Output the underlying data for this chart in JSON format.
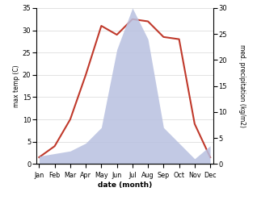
{
  "months": [
    "Jan",
    "Feb",
    "Mar",
    "Apr",
    "May",
    "Jun",
    "Jul",
    "Aug",
    "Sep",
    "Oct",
    "Nov",
    "Dec"
  ],
  "temperature": [
    1.5,
    4.0,
    10.0,
    20.0,
    31.0,
    29.0,
    32.5,
    32.0,
    28.5,
    28.0,
    9.0,
    1.5
  ],
  "precipitation": [
    1.5,
    2.0,
    2.5,
    4.0,
    7.0,
    22.0,
    30.0,
    24.0,
    7.0,
    4.0,
    1.0,
    3.5
  ],
  "temp_color": "#c0392b",
  "precip_color": "#b8c0e0",
  "temp_ylim": [
    0,
    35
  ],
  "precip_ylim": [
    0,
    30
  ],
  "temp_yticks": [
    0,
    5,
    10,
    15,
    20,
    25,
    30,
    35
  ],
  "precip_yticks": [
    0,
    5,
    10,
    15,
    20,
    25,
    30
  ],
  "xlabel": "date (month)",
  "ylabel_left": "max temp (C)",
  "ylabel_right": "med. precipitation (kg/m2)",
  "background_color": "#ffffff",
  "grid_color": "#cccccc",
  "temp_linewidth": 1.5,
  "fig_width": 3.18,
  "fig_height": 2.48,
  "dpi": 100
}
